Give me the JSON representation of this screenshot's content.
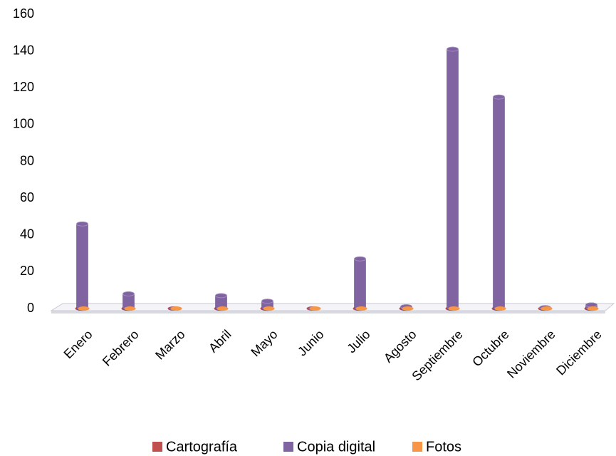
{
  "chart_data": {
    "type": "bar3d",
    "categories": [
      "Enero",
      "Febrero",
      "Marzo",
      "Abril",
      "Mayo",
      "Junio",
      "Julio",
      "Agosto",
      "Septiembre",
      "Octubre",
      "Noviembre",
      "Diciembre"
    ],
    "series": [
      {
        "name": "Cartografía",
        "color": "#c0504d",
        "values": [
          0,
          0,
          0,
          0,
          0,
          0,
          0,
          0,
          0,
          0,
          0,
          0
        ]
      },
      {
        "name": "Copia digital",
        "color": "#8064a2",
        "values": [
          46,
          8,
          0,
          7,
          4,
          0,
          27,
          1,
          141,
          115,
          0.5,
          2
        ]
      },
      {
        "name": "Fotos",
        "color": "#f79646",
        "values": [
          0,
          0,
          0,
          0,
          0,
          0,
          0,
          0,
          0,
          0,
          0,
          0
        ]
      }
    ],
    "ylim": [
      0,
      160
    ],
    "yticks": [
      0,
      20,
      40,
      60,
      80,
      100,
      120,
      140,
      160
    ],
    "grid": false,
    "legend": "bottom"
  }
}
